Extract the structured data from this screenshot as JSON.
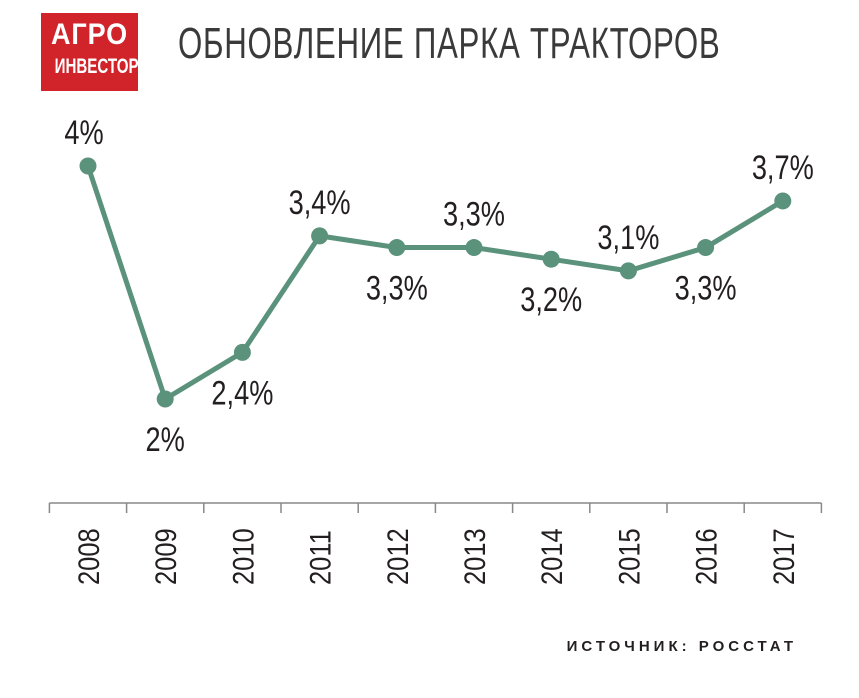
{
  "logo": {
    "line1": "АГРО",
    "line2": "ИНВЕСТОР"
  },
  "title": "ОБНОВЛЕНИЕ ПАРКА ТРАКТОРОВ",
  "source": "ИСТОЧНИК: РОССТАТ",
  "colors": {
    "line": "#5b927c",
    "logo_bg": "#d0232a",
    "axis": "#888888"
  },
  "chart_data": {
    "type": "line",
    "title": "ОБНОВЛЕНИЕ ПАРКА ТРАКТОРОВ",
    "xlabel": "",
    "ylabel": "",
    "grid": false,
    "categories": [
      "2008",
      "2009",
      "2010",
      "2011",
      "2012",
      "2013",
      "2014",
      "2015",
      "2016",
      "2017"
    ],
    "series": [
      {
        "values": [
          4.0,
          2.0,
          2.4,
          3.4,
          3.3,
          3.3,
          3.2,
          3.1,
          3.3,
          3.7
        ],
        "labels": [
          "4%",
          "2%",
          "2,4%",
          "3,4%",
          "3,3%",
          "3,3%",
          "3,2%",
          "3,1%",
          "3,3%",
          "3,7%"
        ]
      }
    ]
  }
}
